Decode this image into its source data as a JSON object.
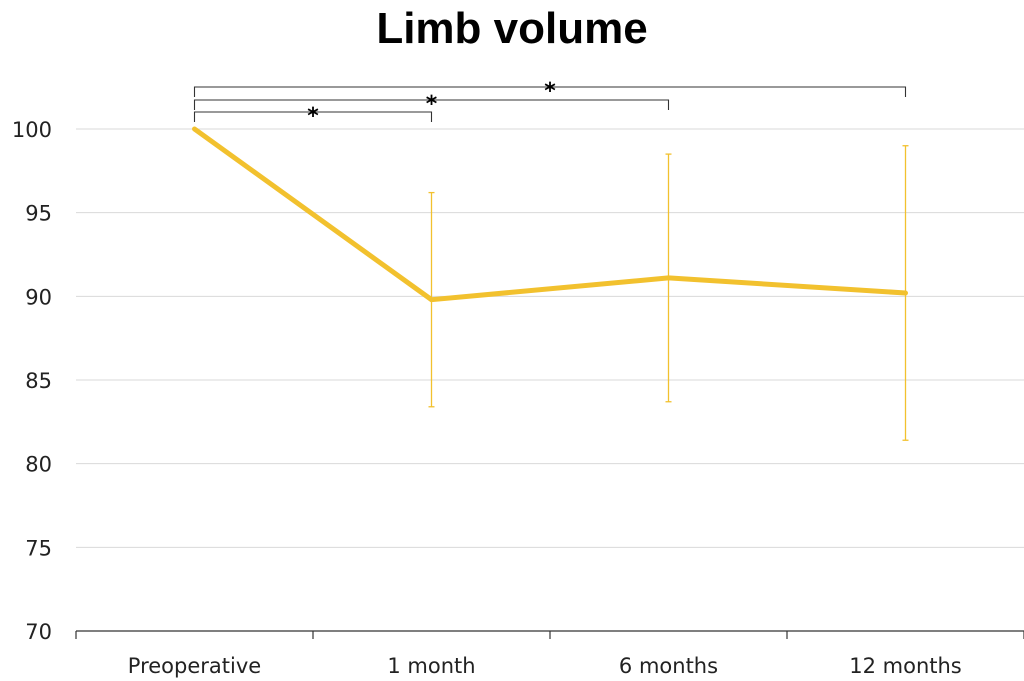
{
  "chart_data": {
    "type": "line",
    "title": "Limb volume",
    "xlabel": "",
    "ylabel": "",
    "categories": [
      "Preoperative",
      "1 month",
      "6 months",
      "12 months"
    ],
    "series": [
      {
        "values": [
          100,
          89.8,
          91.1,
          90.2
        ],
        "error_low": [
          100,
          83.4,
          83.7,
          81.4
        ],
        "error_high": [
          100,
          96.2,
          98.5,
          99.0
        ],
        "color": "#f2c12e"
      }
    ],
    "ylim": [
      70,
      100
    ],
    "yticks": [
      70,
      75,
      80,
      85,
      90,
      95,
      100
    ],
    "grid": true,
    "legend": "none",
    "significance": [
      {
        "from": "Preoperative",
        "to": "1 month",
        "label": "*"
      },
      {
        "from": "Preoperative",
        "to": "6 months",
        "label": "*"
      },
      {
        "from": "Preoperative",
        "to": "12 months",
        "label": "*"
      }
    ]
  }
}
